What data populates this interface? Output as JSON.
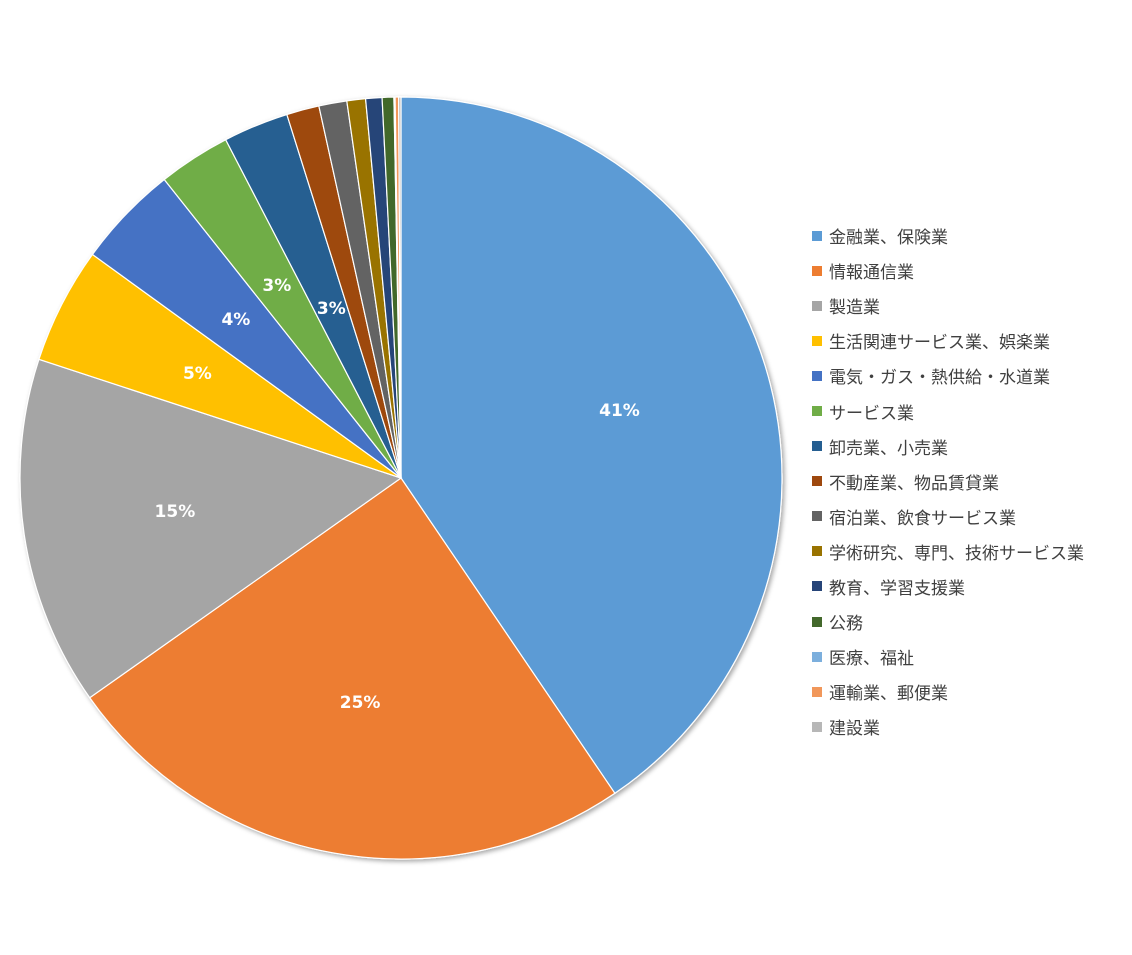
{
  "chart_data": {
    "type": "pie",
    "title": "",
    "legend_position": "right",
    "slices": [
      {
        "label": "金融業、保険業",
        "value": 41.0,
        "color": "#5B9BD5",
        "data_label": "41%"
      },
      {
        "label": "情報通信業",
        "value": 25.0,
        "color": "#ED7D31",
        "data_label": "25%"
      },
      {
        "label": "製造業",
        "value": 15.0,
        "color": "#A5A5A5",
        "data_label": "15%"
      },
      {
        "label": "生活関連サービス業、娯楽業",
        "value": 5.0,
        "color": "#FFC000",
        "data_label": "5%"
      },
      {
        "label": "電気・ガス・熱供給・水道業",
        "value": 4.4,
        "color": "#4472C4",
        "data_label": "4%"
      },
      {
        "label": "サービス業",
        "value": 3.1,
        "color": "#70AD47",
        "data_label": "3%"
      },
      {
        "label": "卸売業、小売業",
        "value": 2.8,
        "color": "#255E91",
        "data_label": "3%"
      },
      {
        "label": "不動産業、物品賃貸業",
        "value": 1.4,
        "color": "#9E480E",
        "data_label": ""
      },
      {
        "label": "宿泊業、飲食サービス業",
        "value": 1.2,
        "color": "#636363",
        "data_label": ""
      },
      {
        "label": "学術研究、専門、技術サービス業",
        "value": 0.8,
        "color": "#997300",
        "data_label": ""
      },
      {
        "label": "教育、学習支援業",
        "value": 0.7,
        "color": "#264478",
        "data_label": ""
      },
      {
        "label": "公務",
        "value": 0.5,
        "color": "#43682B",
        "data_label": ""
      },
      {
        "label": "医療、福祉",
        "value": 0.05,
        "color": "#7CAFDD",
        "data_label": ""
      },
      {
        "label": "運輸業、郵便業",
        "value": 0.15,
        "color": "#F1975A",
        "data_label": ""
      },
      {
        "label": "建設業",
        "value": 0.1,
        "color": "#B7B7B7",
        "data_label": ""
      }
    ]
  }
}
